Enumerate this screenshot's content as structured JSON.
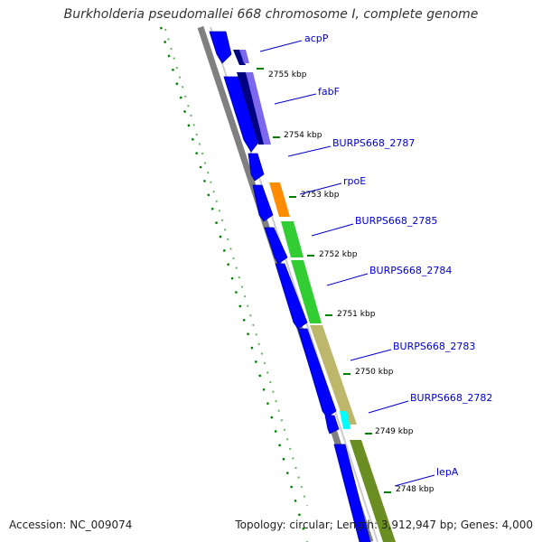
{
  "title": "Burkholderia pseudomallei 668 chromosome I, complete genome",
  "footer": {
    "accession": "Accession: NC_009074",
    "topology": "Topology: circular; Length: 3,912,947 bp; Genes: 4,000"
  },
  "scale_labels": [
    "2755 kbp",
    "2754 kbp",
    "2753 kbp",
    "2752 kbp",
    "2751 kbp",
    "2750 kbp",
    "2749 kbp",
    "2748 kbp"
  ],
  "genes": [
    {
      "name": "acpP",
      "color": "#7b68ee"
    },
    {
      "name": "fabF",
      "color": "#7b68ee"
    },
    {
      "name": "BURPS668_2787"
    },
    {
      "name": "rpoE",
      "color": "#ff8c00"
    },
    {
      "name": "BURPS668_2785",
      "color": "#32cd32"
    },
    {
      "name": "BURPS668_2784",
      "color": "#32cd32"
    },
    {
      "name": "BURPS668_2783",
      "color": "#bdb76b"
    },
    {
      "name": "BURPS668_2782",
      "color": "#00ffff"
    },
    {
      "name": "lepA",
      "color": "#6b8e23"
    }
  ],
  "colors": {
    "backbone": "#808080",
    "orf": "#0000ff",
    "gc_skew": "#008000",
    "label": "#0000cd"
  }
}
